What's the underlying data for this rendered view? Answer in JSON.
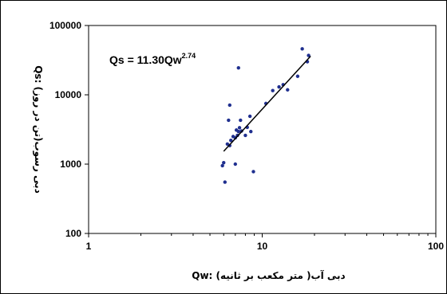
{
  "chart_data": {
    "type": "scatter",
    "title": "",
    "xlabel": "Qw: دبی آب( متر مکعب بر ثانیه)",
    "ylabel": "Qs: دبی رسوب(تن در روز)",
    "xscale": "log",
    "yscale": "log",
    "xlim": [
      1,
      100
    ],
    "ylim": [
      100,
      100000
    ],
    "xticks": [
      1,
      10,
      100
    ],
    "xtick_labels": [
      "1",
      "10",
      "100"
    ],
    "yticks": [
      100,
      1000,
      10000,
      100000
    ],
    "ytick_labels": [
      "100",
      "1000",
      "10000",
      "100000"
    ],
    "grid": false,
    "legend": null,
    "marker_color": "#1f2f8f",
    "trend_color": "#000000",
    "points": [
      {
        "x": 6.1,
        "y": 550
      },
      {
        "x": 5.9,
        "y": 950
      },
      {
        "x": 6.0,
        "y": 1050
      },
      {
        "x": 7.0,
        "y": 1000
      },
      {
        "x": 8.9,
        "y": 780
      },
      {
        "x": 6.3,
        "y": 1950
      },
      {
        "x": 6.5,
        "y": 1850
      },
      {
        "x": 6.6,
        "y": 2200
      },
      {
        "x": 6.8,
        "y": 2500
      },
      {
        "x": 7.0,
        "y": 2400
      },
      {
        "x": 7.2,
        "y": 2600
      },
      {
        "x": 7.3,
        "y": 2950
      },
      {
        "x": 7.1,
        "y": 3100
      },
      {
        "x": 7.4,
        "y": 3350
      },
      {
        "x": 7.6,
        "y": 3000
      },
      {
        "x": 8.0,
        "y": 2600
      },
      {
        "x": 8.6,
        "y": 2950
      },
      {
        "x": 8.2,
        "y": 3400
      },
      {
        "x": 6.4,
        "y": 4300
      },
      {
        "x": 7.5,
        "y": 4300
      },
      {
        "x": 8.5,
        "y": 4900
      },
      {
        "x": 6.5,
        "y": 7100
      },
      {
        "x": 7.3,
        "y": 24500
      },
      {
        "x": 10.5,
        "y": 7500
      },
      {
        "x": 11.5,
        "y": 11500
      },
      {
        "x": 12.5,
        "y": 13000
      },
      {
        "x": 13.2,
        "y": 14000
      },
      {
        "x": 14.0,
        "y": 11800
      },
      {
        "x": 16.0,
        "y": 18500
      },
      {
        "x": 17.0,
        "y": 46000
      },
      {
        "x": 18.5,
        "y": 37000
      },
      {
        "x": 18.2,
        "y": 30000
      }
    ],
    "trendline": {
      "equation_base": "Qs = 11.30Qw",
      "equation_exponent": "2.74",
      "coefficient": 11.3,
      "exponent": 2.74,
      "x_range": [
        6.0,
        19.0
      ]
    }
  }
}
